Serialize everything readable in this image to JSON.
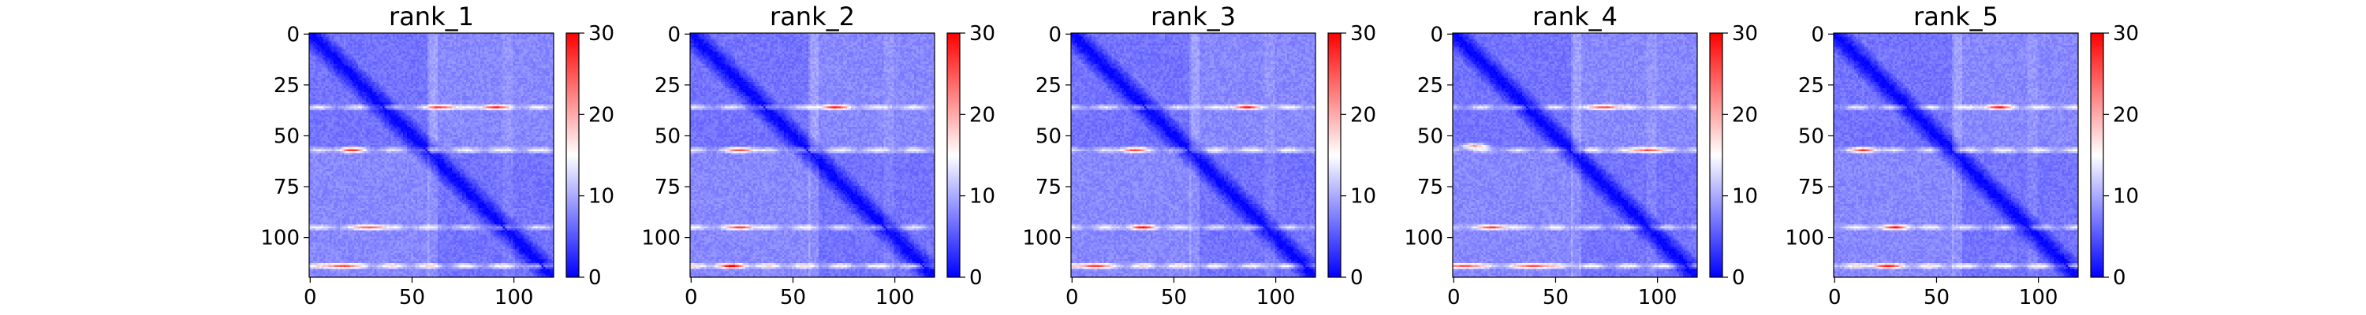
{
  "chart_data": {
    "type": "heatmap",
    "colormap": "bwr",
    "vmin": 0,
    "vmax": 30,
    "matrix_size": 120,
    "x_ticks": [
      "0",
      "50",
      "100"
    ],
    "x_tick_values": [
      0,
      50,
      100
    ],
    "y_ticks": [
      "0",
      "25",
      "50",
      "75",
      "100"
    ],
    "y_tick_values": [
      0,
      25,
      50,
      75,
      100
    ],
    "colorbar_ticks": [
      "0",
      "10",
      "20",
      "30"
    ],
    "colorbar_tick_values": [
      0,
      10,
      20,
      30
    ],
    "background_level": 8,
    "domain_boundary": 59,
    "bright_rows": [
      36,
      57,
      95,
      114
    ],
    "panels": [
      {
        "title": "rank_1",
        "hot_spots": [
          [
            36,
            65
          ],
          [
            36,
            90
          ],
          [
            57,
            20
          ],
          [
            95,
            30
          ],
          [
            114,
            15
          ]
        ]
      },
      {
        "title": "rank_2",
        "hot_spots": [
          [
            36,
            70
          ],
          [
            57,
            25
          ],
          [
            95,
            25
          ],
          [
            114,
            20
          ]
        ]
      },
      {
        "title": "rank_3",
        "hot_spots": [
          [
            36,
            85
          ],
          [
            57,
            30
          ],
          [
            95,
            35
          ],
          [
            114,
            10
          ]
        ]
      },
      {
        "title": "rank_4",
        "hot_spots": [
          [
            36,
            75
          ],
          [
            55,
            10
          ],
          [
            57,
            95
          ],
          [
            95,
            20
          ],
          [
            114,
            5
          ],
          [
            114,
            40
          ]
        ]
      },
      {
        "title": "rank_5",
        "hot_spots": [
          [
            36,
            80
          ],
          [
            57,
            15
          ],
          [
            95,
            30
          ],
          [
            114,
            25
          ]
        ]
      }
    ]
  }
}
